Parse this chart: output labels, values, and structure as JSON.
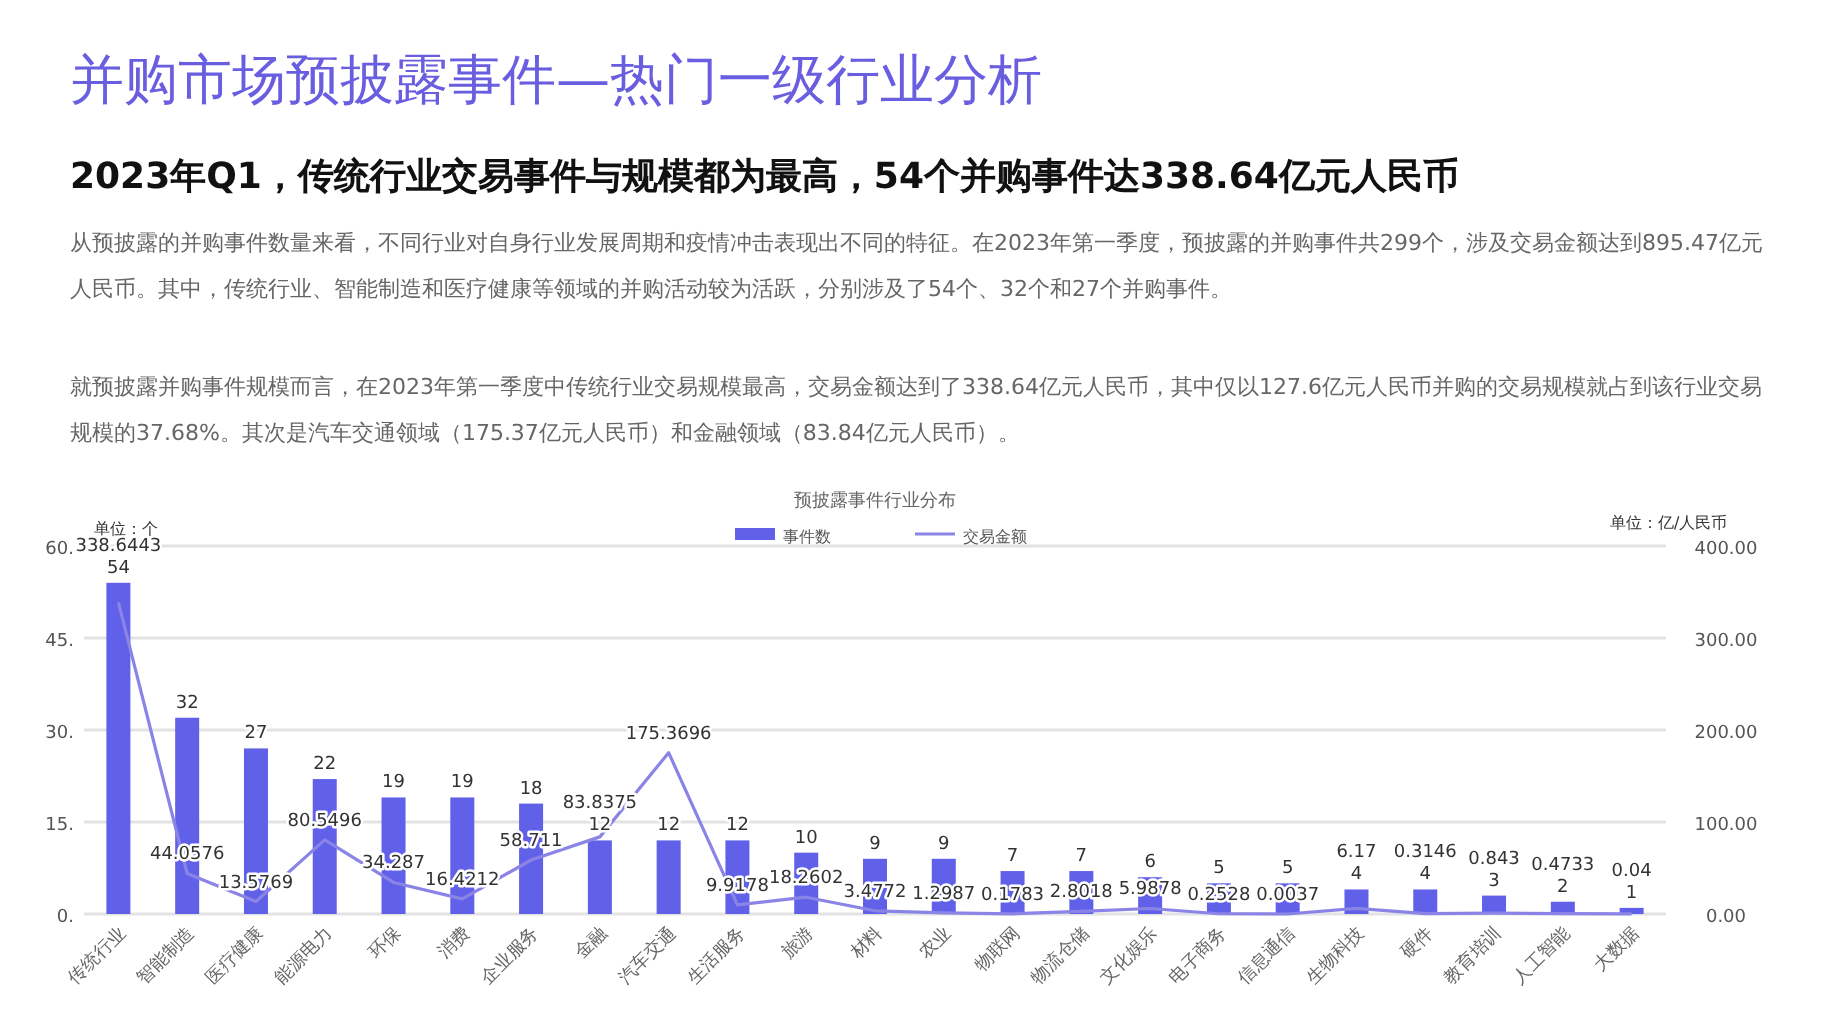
{
  "chart_data": {
    "type": "bar",
    "title": "并购市场预披露事件—热门一级行业分析",
    "subtitle": "2023年Q1，传统行业交易事件与规模都为最高，54个并购事件达338.64亿元人民币",
    "annotations": [
      "从预披露的并购事件数量来看，不同行业对自身行业发展周期和疫情冲击表现出不同的特征。在2023年第一季度，预披露的并购事件共299个，涉及交易金额达到895.47亿元人民币。其中，传统行业、智能制造和医疗健康等领域的并购活动较为活跃，分别涉及了54个、32个和27个并购事件。",
      "就预披露并购事件规模而言，在2023年第一季度中传统行业交易规模最高，交易金额达到了338.64亿元人民币，其中仅以127.6亿元人民币并购的交易规模就占到该行业交易规模的37.68%。其次是汽车交通领域（175.37亿元人民币）和金融领域（83.84亿元人民币）。",
      "预披露事件行业分布"
    ],
    "ylabel": "单位：个",
    "y2label": "单位：亿/人民币",
    "categories": [
      "传统行业",
      "智能制造",
      "医疗健康",
      "能源电力",
      "环保",
      "消费",
      "企业服务",
      "金融",
      "汽车交通",
      "生活服务",
      "旅游",
      "材料",
      "农业",
      "物联网",
      "物流仓储",
      "文化娱乐",
      "电子商务",
      "信息通信",
      "生物科技",
      "硬件",
      "教育培训",
      "人工智能",
      "大数据"
    ],
    "series": [
      {
        "name": "事件数",
        "color": "#6060e8",
        "values": [
          54,
          32,
          27,
          22,
          19,
          19,
          18,
          12,
          12,
          12,
          10,
          9,
          9,
          7,
          7,
          6,
          5,
          5,
          4,
          4,
          3,
          2,
          1
        ]
      },
      {
        "name": "交易金额",
        "type": "line",
        "axis": "y2",
        "color": "#8a84e6",
        "values": [
          338.6443,
          44.0576,
          13.5769,
          80.5496,
          34.287,
          16.4212,
          58.711,
          83.8375,
          175.3696,
          9.9178,
          18.2602,
          3.4772,
          1.2987,
          0.1783,
          2.8018,
          5.9878,
          0.2528,
          0.0037,
          6.17,
          0.3146,
          0.843,
          0.4733,
          0.04
        ]
      }
    ],
    "ylim": [
      0,
      60
    ],
    "yticks": [
      {
        "value": 0,
        "label": "0."
      },
      {
        "value": 15,
        "label": "15."
      },
      {
        "value": 30,
        "label": "30."
      },
      {
        "value": 45,
        "label": "45."
      },
      {
        "value": 60,
        "label": "60."
      }
    ],
    "y2lim": [
      0,
      400
    ],
    "y2ticks": [
      {
        "value": 0,
        "label": "0.00"
      },
      {
        "value": 100,
        "label": "100.00"
      },
      {
        "value": 200,
        "label": "200.00"
      },
      {
        "value": 300,
        "label": "300.00"
      },
      {
        "value": 400,
        "label": "400.00"
      }
    ],
    "grid": "y",
    "legend": "top",
    "data_labels": true,
    "marker": "none"
  }
}
